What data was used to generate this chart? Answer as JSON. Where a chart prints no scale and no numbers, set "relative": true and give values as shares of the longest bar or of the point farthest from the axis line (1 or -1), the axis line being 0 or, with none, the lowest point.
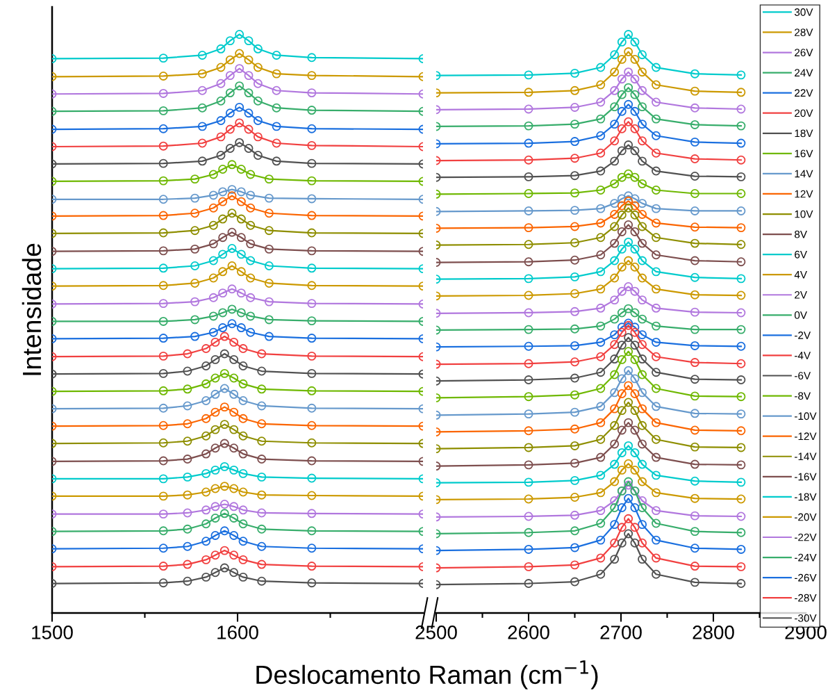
{
  "chart_data": [
    {
      "type": "line",
      "relative": true,
      "marker": "circle",
      "line_style": "solid",
      "grid": false,
      "legend": false,
      "ylabel": "Intensidade",
      "xlabel": "Deslocamento Raman (cm$^{−1}$)",
      "xlim": [
        1500,
        1700
      ],
      "xticks": [
        1500,
        {
          "value": 1550,
          "label": null
        },
        1600,
        {
          "value": 1650,
          "label": null
        }
      ],
      "series": [
        {
          "color": "#00cbcc",
          "x": [
            1500,
            1560,
            1581,
            1591,
            1596,
            1601,
            1606,
            1611,
            1621,
            1640,
            1700
          ],
          "values": [
            0.958,
            0.959,
            0.964,
            0.975,
            0.989,
            1.0,
            0.989,
            0.975,
            0.964,
            0.96,
            0.958
          ]
        },
        {
          "color": "#cc9900",
          "x": [
            1500,
            1560,
            1581,
            1591,
            1596,
            1601,
            1606,
            1611,
            1621,
            1640,
            1700
          ],
          "values": [
            0.927,
            0.928,
            0.932,
            0.943,
            0.956,
            0.967,
            0.956,
            0.943,
            0.932,
            0.929,
            0.927
          ]
        },
        {
          "color": "#b177de",
          "x": [
            1500,
            1560,
            1581,
            1591,
            1596,
            1601,
            1606,
            1611,
            1621,
            1640,
            1700
          ],
          "values": [
            0.897,
            0.898,
            0.903,
            0.915,
            0.929,
            0.941,
            0.929,
            0.915,
            0.903,
            0.899,
            0.897
          ]
        },
        {
          "color": "#37ad6b",
          "x": [
            1500,
            1560,
            1581,
            1591,
            1596,
            1601,
            1606,
            1611,
            1621,
            1640,
            1700
          ],
          "values": [
            0.867,
            0.868,
            0.873,
            0.885,
            0.899,
            0.911,
            0.899,
            0.885,
            0.873,
            0.869,
            0.867
          ]
        },
        {
          "color": "#1a6fdf",
          "x": [
            1500,
            1560,
            1581,
            1591,
            1596,
            1601,
            1606,
            1611,
            1621,
            1640,
            1700
          ],
          "values": [
            0.836,
            0.837,
            0.841,
            0.851,
            0.864,
            0.874,
            0.864,
            0.851,
            0.841,
            0.837,
            0.836
          ]
        },
        {
          "color": "#f14040",
          "x": [
            1500,
            1560,
            1581,
            1591,
            1596,
            1601,
            1606,
            1611,
            1621,
            1640,
            1700
          ],
          "values": [
            0.806,
            0.807,
            0.812,
            0.823,
            0.836,
            0.847,
            0.836,
            0.823,
            0.812,
            0.808,
            0.806
          ]
        },
        {
          "color": "#515151",
          "x": [
            1500,
            1560,
            1581,
            1591,
            1596,
            1601,
            1606,
            1611,
            1621,
            1640,
            1700
          ],
          "values": [
            0.776,
            0.777,
            0.781,
            0.791,
            0.803,
            0.813,
            0.803,
            0.791,
            0.781,
            0.777,
            0.776
          ]
        },
        {
          "color": "#6fb802",
          "x": [
            1500,
            1560,
            1577,
            1587,
            1592,
            1597,
            1602,
            1607,
            1617,
            1640,
            1700
          ],
          "values": [
            0.746,
            0.747,
            0.75,
            0.758,
            0.767,
            0.775,
            0.767,
            0.758,
            0.75,
            0.747,
            0.746
          ]
        },
        {
          "color": "#6699cc",
          "x": [
            1500,
            1560,
            1577,
            1587,
            1592,
            1597,
            1602,
            1607,
            1617,
            1640,
            1700
          ],
          "values": [
            0.715,
            0.715,
            0.717,
            0.722,
            0.728,
            0.732,
            0.728,
            0.722,
            0.717,
            0.716,
            0.715
          ]
        },
        {
          "color": "#fb6501",
          "x": [
            1500,
            1560,
            1577,
            1587,
            1592,
            1597,
            1602,
            1607,
            1617,
            1640,
            1700
          ],
          "values": [
            0.686,
            0.687,
            0.691,
            0.7,
            0.711,
            0.721,
            0.711,
            0.7,
            0.691,
            0.687,
            0.686
          ]
        },
        {
          "color": "#8e8e00",
          "x": [
            1500,
            1560,
            1577,
            1587,
            1592,
            1597,
            1602,
            1607,
            1617,
            1640,
            1700
          ],
          "values": [
            0.656,
            0.657,
            0.661,
            0.67,
            0.681,
            0.691,
            0.681,
            0.67,
            0.661,
            0.657,
            0.656
          ]
        },
        {
          "color": "#7d4e4e",
          "x": [
            1500,
            1560,
            1577,
            1587,
            1592,
            1597,
            1602,
            1607,
            1617,
            1640,
            1700
          ],
          "values": [
            0.625,
            0.626,
            0.629,
            0.638,
            0.649,
            0.658,
            0.649,
            0.638,
            0.629,
            0.626,
            0.625
          ]
        },
        {
          "color": "#00cbcc",
          "x": [
            1500,
            1560,
            1577,
            1587,
            1592,
            1597,
            1602,
            1607,
            1617,
            1640,
            1700
          ],
          "values": [
            0.595,
            0.596,
            0.6,
            0.609,
            0.62,
            0.63,
            0.62,
            0.609,
            0.6,
            0.596,
            0.595
          ]
        },
        {
          "color": "#cc9900",
          "x": [
            1500,
            1560,
            1577,
            1587,
            1592,
            1597,
            1602,
            1607,
            1617,
            1640,
            1700
          ],
          "values": [
            0.565,
            0.566,
            0.57,
            0.579,
            0.59,
            0.6,
            0.59,
            0.579,
            0.57,
            0.566,
            0.565
          ]
        },
        {
          "color": "#b177de",
          "x": [
            1500,
            1560,
            1577,
            1587,
            1592,
            1597,
            1602,
            1607,
            1617,
            1640,
            1700
          ],
          "values": [
            0.534,
            0.535,
            0.538,
            0.545,
            0.553,
            0.56,
            0.553,
            0.545,
            0.538,
            0.535,
            0.534
          ]
        },
        {
          "color": "#37ad6b",
          "x": [
            1500,
            1560,
            1577,
            1587,
            1592,
            1597,
            1602,
            1607,
            1617,
            1640,
            1700
          ],
          "values": [
            0.504,
            0.504,
            0.507,
            0.513,
            0.519,
            0.525,
            0.519,
            0.513,
            0.507,
            0.505,
            0.504
          ]
        },
        {
          "color": "#1a6fdf",
          "x": [
            1500,
            1560,
            1577,
            1587,
            1592,
            1597,
            1602,
            1607,
            1617,
            1640,
            1700
          ],
          "values": [
            0.474,
            0.475,
            0.478,
            0.485,
            0.493,
            0.5,
            0.493,
            0.485,
            0.478,
            0.475,
            0.474
          ]
        },
        {
          "color": "#f14040",
          "x": [
            1500,
            1560,
            1573,
            1583,
            1588,
            1593,
            1598,
            1603,
            1613,
            1640,
            1700
          ],
          "values": [
            0.443,
            0.444,
            0.448,
            0.457,
            0.468,
            0.478,
            0.468,
            0.457,
            0.448,
            0.444,
            0.443
          ]
        },
        {
          "color": "#515151",
          "x": [
            1500,
            1560,
            1573,
            1583,
            1588,
            1593,
            1598,
            1603,
            1613,
            1640,
            1700
          ],
          "values": [
            0.413,
            0.414,
            0.418,
            0.427,
            0.438,
            0.448,
            0.438,
            0.427,
            0.418,
            0.414,
            0.413
          ]
        },
        {
          "color": "#6fb802",
          "x": [
            1500,
            1560,
            1573,
            1583,
            1588,
            1593,
            1598,
            1603,
            1613,
            1640,
            1700
          ],
          "values": [
            0.383,
            0.384,
            0.387,
            0.396,
            0.406,
            0.414,
            0.406,
            0.396,
            0.387,
            0.384,
            0.383
          ]
        },
        {
          "color": "#6699cc",
          "x": [
            1500,
            1560,
            1573,
            1583,
            1588,
            1593,
            1598,
            1603,
            1613,
            1640,
            1700
          ],
          "values": [
            0.353,
            0.354,
            0.358,
            0.367,
            0.378,
            0.388,
            0.378,
            0.367,
            0.358,
            0.354,
            0.353
          ]
        },
        {
          "color": "#fb6501",
          "x": [
            1500,
            1560,
            1573,
            1583,
            1588,
            1593,
            1598,
            1603,
            1613,
            1640,
            1700
          ],
          "values": [
            0.323,
            0.324,
            0.327,
            0.336,
            0.347,
            0.356,
            0.347,
            0.336,
            0.327,
            0.324,
            0.323
          ]
        },
        {
          "color": "#8e8e00",
          "x": [
            1500,
            1560,
            1573,
            1583,
            1588,
            1593,
            1598,
            1603,
            1613,
            1640,
            1700
          ],
          "values": [
            0.293,
            0.294,
            0.297,
            0.306,
            0.317,
            0.326,
            0.317,
            0.306,
            0.297,
            0.294,
            0.293
          ]
        },
        {
          "color": "#7d4e4e",
          "x": [
            1500,
            1560,
            1573,
            1583,
            1588,
            1593,
            1598,
            1603,
            1613,
            1640,
            1700
          ],
          "values": [
            0.262,
            0.263,
            0.266,
            0.275,
            0.285,
            0.293,
            0.285,
            0.275,
            0.266,
            0.263,
            0.262
          ]
        },
        {
          "color": "#00cbcc",
          "x": [
            1500,
            1560,
            1573,
            1583,
            1588,
            1593,
            1598,
            1603,
            1613,
            1640,
            1700
          ],
          "values": [
            0.232,
            0.232,
            0.235,
            0.241,
            0.247,
            0.253,
            0.247,
            0.241,
            0.235,
            0.233,
            0.232
          ]
        },
        {
          "color": "#cc9900",
          "x": [
            1500,
            1560,
            1573,
            1583,
            1588,
            1593,
            1598,
            1603,
            1613,
            1640,
            1700
          ],
          "values": [
            0.202,
            0.202,
            0.204,
            0.209,
            0.215,
            0.219,
            0.215,
            0.209,
            0.204,
            0.203,
            0.202
          ]
        },
        {
          "color": "#b177de",
          "x": [
            1500,
            1560,
            1573,
            1583,
            1588,
            1593,
            1598,
            1603,
            1613,
            1640,
            1700
          ],
          "values": [
            0.171,
            0.171,
            0.173,
            0.178,
            0.184,
            0.188,
            0.184,
            0.178,
            0.173,
            0.172,
            0.171
          ]
        },
        {
          "color": "#37ad6b",
          "x": [
            1500,
            1560,
            1573,
            1583,
            1588,
            1593,
            1598,
            1603,
            1613,
            1640,
            1700
          ],
          "values": [
            0.141,
            0.142,
            0.145,
            0.154,
            0.164,
            0.172,
            0.164,
            0.154,
            0.145,
            0.142,
            0.141
          ]
        },
        {
          "color": "#1a6fdf",
          "x": [
            1500,
            1560,
            1573,
            1583,
            1588,
            1593,
            1598,
            1603,
            1613,
            1640,
            1700
          ],
          "values": [
            0.111,
            0.112,
            0.115,
            0.124,
            0.134,
            0.142,
            0.134,
            0.124,
            0.115,
            0.112,
            0.111
          ]
        },
        {
          "color": "#f14040",
          "x": [
            1500,
            1560,
            1573,
            1583,
            1588,
            1593,
            1598,
            1603,
            1613,
            1640,
            1700
          ],
          "values": [
            0.08,
            0.081,
            0.084,
            0.092,
            0.1,
            0.108,
            0.1,
            0.092,
            0.084,
            0.081,
            0.08
          ]
        },
        {
          "color": "#515151",
          "x": [
            1500,
            1560,
            1573,
            1583,
            1588,
            1593,
            1598,
            1603,
            1613,
            1640,
            1700
          ],
          "values": [
            0.051,
            0.052,
            0.055,
            0.062,
            0.07,
            0.078,
            0.07,
            0.062,
            0.055,
            0.052,
            0.051
          ]
        }
      ]
    },
    {
      "type": "line",
      "relative": true,
      "marker": "circle",
      "line_style": "solid",
      "grid": false,
      "legend": "right",
      "xlim": [
        2500,
        2900
      ],
      "xticks": [
        2500,
        {
          "value": 2550,
          "label": null
        },
        2600,
        {
          "value": 2650,
          "label": null
        },
        2700,
        {
          "value": 2750,
          "label": null
        },
        2800,
        {
          "value": 2850,
          "label": null
        },
        2900
      ],
      "x": [
        2500,
        2600,
        2650,
        2678,
        2693,
        2701,
        2708,
        2715,
        2723,
        2738,
        2780,
        2830
      ],
      "series": [
        {
          "name": "30V",
          "color": "#00cbcc",
          "values": [
            0.929,
            0.93,
            0.933,
            0.943,
            0.965,
            0.987,
            1.0,
            0.987,
            0.965,
            0.943,
            0.932,
            0.93
          ]
        },
        {
          "name": "28V",
          "color": "#cc9900",
          "values": [
            0.899,
            0.9,
            0.903,
            0.913,
            0.935,
            0.957,
            0.97,
            0.957,
            0.935,
            0.913,
            0.902,
            0.9
          ]
        },
        {
          "name": "26V",
          "color": "#b177de",
          "values": [
            0.87,
            0.871,
            0.874,
            0.883,
            0.903,
            0.923,
            0.935,
            0.923,
            0.903,
            0.883,
            0.873,
            0.871
          ]
        },
        {
          "name": "24V",
          "color": "#37ad6b",
          "values": [
            0.841,
            0.842,
            0.845,
            0.854,
            0.875,
            0.896,
            0.908,
            0.896,
            0.875,
            0.854,
            0.844,
            0.842
          ]
        },
        {
          "name": "22V",
          "color": "#1a6fdf",
          "values": [
            0.811,
            0.812,
            0.815,
            0.825,
            0.845,
            0.867,
            0.879,
            0.867,
            0.845,
            0.825,
            0.814,
            0.812
          ]
        },
        {
          "name": "20V",
          "color": "#f14040",
          "values": [
            0.782,
            0.783,
            0.786,
            0.795,
            0.816,
            0.837,
            0.849,
            0.837,
            0.816,
            0.795,
            0.785,
            0.783
          ]
        },
        {
          "name": "18V",
          "color": "#515151",
          "values": [
            0.753,
            0.754,
            0.756,
            0.764,
            0.781,
            0.799,
            0.809,
            0.799,
            0.781,
            0.764,
            0.755,
            0.754
          ]
        },
        {
          "name": "16V",
          "color": "#6fb802",
          "values": [
            0.724,
            0.725,
            0.726,
            0.731,
            0.742,
            0.753,
            0.759,
            0.753,
            0.742,
            0.731,
            0.725,
            0.725
          ]
        },
        {
          "name": "14V",
          "color": "#6699cc",
          "values": [
            0.694,
            0.695,
            0.696,
            0.699,
            0.708,
            0.716,
            0.721,
            0.716,
            0.708,
            0.699,
            0.695,
            0.695
          ]
        },
        {
          "name": "12V",
          "color": "#fb6501",
          "values": [
            0.665,
            0.666,
            0.668,
            0.674,
            0.689,
            0.704,
            0.712,
            0.704,
            0.689,
            0.674,
            0.667,
            0.666
          ]
        },
        {
          "name": "10V",
          "color": "#8e8e00",
          "values": [
            0.636,
            0.637,
            0.64,
            0.649,
            0.668,
            0.688,
            0.7,
            0.688,
            0.668,
            0.649,
            0.639,
            0.637
          ]
        },
        {
          "name": "8V",
          "color": "#7d4e4e",
          "values": [
            0.606,
            0.607,
            0.61,
            0.619,
            0.639,
            0.659,
            0.671,
            0.659,
            0.639,
            0.619,
            0.609,
            0.607
          ]
        },
        {
          "name": "6V",
          "color": "#00cbcc",
          "values": [
            0.577,
            0.578,
            0.581,
            0.59,
            0.609,
            0.629,
            0.641,
            0.629,
            0.609,
            0.59,
            0.58,
            0.578
          ]
        },
        {
          "name": "4V",
          "color": "#cc9900",
          "values": [
            0.548,
            0.549,
            0.552,
            0.56,
            0.579,
            0.598,
            0.609,
            0.598,
            0.579,
            0.56,
            0.55,
            0.549
          ]
        },
        {
          "name": "2V",
          "color": "#b177de",
          "values": [
            0.518,
            0.519,
            0.521,
            0.527,
            0.541,
            0.556,
            0.564,
            0.556,
            0.541,
            0.527,
            0.52,
            0.519
          ]
        },
        {
          "name": "0V",
          "color": "#37ad6b",
          "values": [
            0.489,
            0.49,
            0.491,
            0.496,
            0.508,
            0.519,
            0.526,
            0.519,
            0.508,
            0.496,
            0.49,
            0.49
          ]
        },
        {
          "name": "-2V",
          "color": "#1a6fdf",
          "values": [
            0.46,
            0.461,
            0.462,
            0.468,
            0.481,
            0.494,
            0.501,
            0.494,
            0.481,
            0.468,
            0.462,
            0.461
          ]
        },
        {
          "name": "-4V",
          "color": "#f14040",
          "values": [
            0.43,
            0.431,
            0.434,
            0.443,
            0.464,
            0.485,
            0.497,
            0.485,
            0.464,
            0.443,
            0.433,
            0.431
          ]
        },
        {
          "name": "-6V",
          "color": "#515151",
          "values": [
            0.401,
            0.403,
            0.406,
            0.416,
            0.439,
            0.463,
            0.476,
            0.463,
            0.439,
            0.416,
            0.404,
            0.403
          ]
        },
        {
          "name": "-8V",
          "color": "#6fb802",
          "values": [
            0.372,
            0.374,
            0.377,
            0.388,
            0.412,
            0.438,
            0.452,
            0.438,
            0.412,
            0.388,
            0.375,
            0.374
          ]
        },
        {
          "name": "-10V",
          "color": "#6699cc",
          "values": [
            0.342,
            0.344,
            0.347,
            0.357,
            0.381,
            0.405,
            0.419,
            0.405,
            0.381,
            0.357,
            0.345,
            0.344
          ]
        },
        {
          "name": "-12V",
          "color": "#fb6501",
          "values": [
            0.313,
            0.315,
            0.318,
            0.329,
            0.353,
            0.379,
            0.393,
            0.379,
            0.353,
            0.329,
            0.316,
            0.315
          ]
        },
        {
          "name": "-14V",
          "color": "#8e8e00",
          "values": [
            0.284,
            0.286,
            0.289,
            0.3,
            0.324,
            0.35,
            0.364,
            0.35,
            0.324,
            0.3,
            0.287,
            0.286
          ]
        },
        {
          "name": "-16V",
          "color": "#7d4e4e",
          "values": [
            0.254,
            0.256,
            0.259,
            0.269,
            0.292,
            0.316,
            0.329,
            0.316,
            0.292,
            0.269,
            0.257,
            0.256
          ]
        },
        {
          "name": "-18V",
          "color": "#00cbcc",
          "values": [
            0.225,
            0.226,
            0.229,
            0.238,
            0.257,
            0.277,
            0.289,
            0.277,
            0.257,
            0.238,
            0.228,
            0.226
          ]
        },
        {
          "name": "-20V",
          "color": "#cc9900",
          "values": [
            0.196,
            0.197,
            0.2,
            0.208,
            0.227,
            0.247,
            0.258,
            0.247,
            0.227,
            0.208,
            0.198,
            0.197
          ]
        },
        {
          "name": "-22V",
          "color": "#b177de",
          "values": [
            0.166,
            0.167,
            0.169,
            0.177,
            0.194,
            0.211,
            0.221,
            0.211,
            0.194,
            0.177,
            0.168,
            0.167
          ]
        },
        {
          "name": "-24V",
          "color": "#37ad6b",
          "values": [
            0.137,
            0.139,
            0.142,
            0.155,
            0.182,
            0.211,
            0.227,
            0.211,
            0.182,
            0.155,
            0.141,
            0.139
          ]
        },
        {
          "name": "-26V",
          "color": "#1a6fdf",
          "values": [
            0.108,
            0.11,
            0.113,
            0.126,
            0.153,
            0.182,
            0.198,
            0.182,
            0.153,
            0.126,
            0.112,
            0.11
          ]
        },
        {
          "name": "-28V",
          "color": "#f14040",
          "values": [
            0.078,
            0.08,
            0.083,
            0.095,
            0.121,
            0.148,
            0.163,
            0.148,
            0.121,
            0.095,
            0.081,
            0.08
          ]
        },
        {
          "name": "-30V",
          "color": "#515151",
          "values": [
            0.049,
            0.051,
            0.054,
            0.067,
            0.093,
            0.121,
            0.137,
            0.121,
            0.093,
            0.067,
            0.053,
            0.051
          ]
        }
      ]
    }
  ]
}
